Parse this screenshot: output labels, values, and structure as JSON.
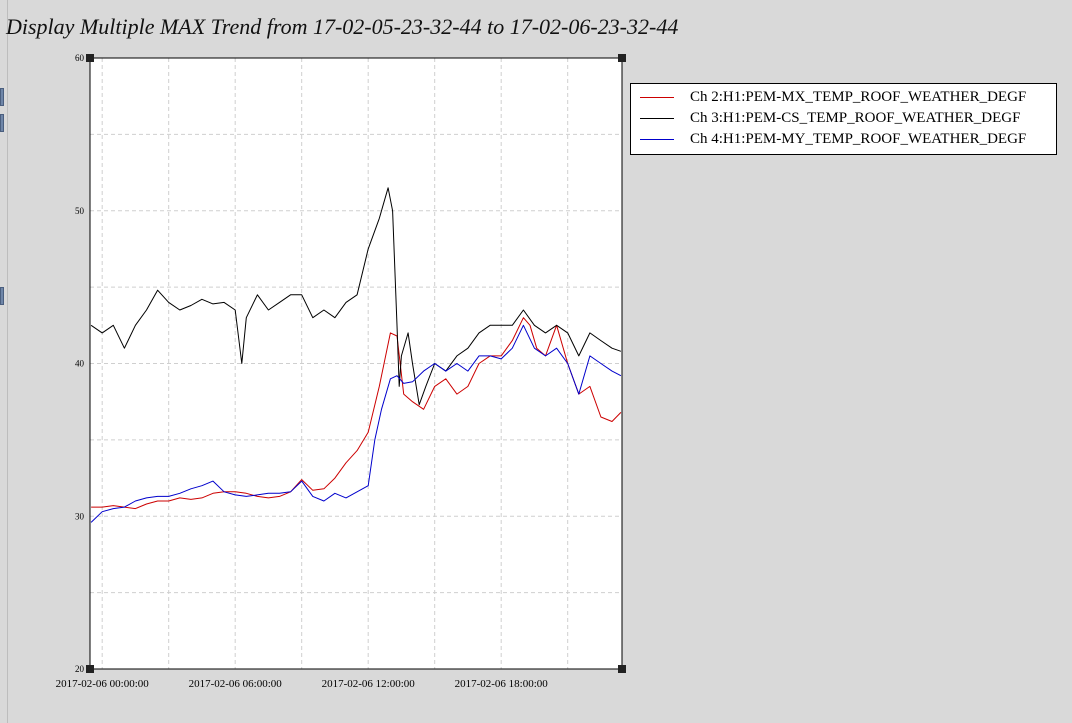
{
  "title": "Display Multiple MAX Trend from 17-02-05-23-32-44 to 17-02-06-23-32-44",
  "chart_data": {
    "type": "line",
    "xlabel": "",
    "ylabel": "",
    "xlim": [
      -0.55,
      23.45
    ],
    "ylim": [
      20,
      60
    ],
    "y_ticks": [
      20,
      30,
      40,
      50,
      60
    ],
    "x_ticks": [
      {
        "label": "2017-02-06 00:00:00",
        "value": 0
      },
      {
        "label": "2017-02-06 06:00:00",
        "value": 6
      },
      {
        "label": "2017-02-06 12:00:00",
        "value": 12
      },
      {
        "label": "2017-02-06 18:00:00",
        "value": 18
      }
    ],
    "grid": true,
    "legend_position": "right",
    "series": [
      {
        "name": "Ch 2:H1:PEM-MX_TEMP_ROOF_WEATHER_DEGF",
        "color": "#cc0000",
        "x": [
          -0.5,
          0.0,
          0.5,
          1.0,
          1.5,
          2.0,
          2.5,
          3.0,
          3.5,
          4.0,
          4.5,
          5.0,
          5.5,
          6.0,
          6.5,
          7.0,
          7.5,
          8.0,
          8.5,
          9.0,
          9.5,
          10.0,
          10.5,
          11.0,
          11.5,
          12.0,
          12.5,
          13.0,
          13.3,
          13.6,
          14.0,
          14.5,
          15.0,
          15.5,
          16.0,
          16.5,
          17.0,
          17.5,
          18.0,
          18.5,
          19.0,
          19.3,
          19.6,
          20.0,
          20.5,
          21.0,
          21.5,
          22.0,
          22.5,
          23.0,
          23.4
        ],
        "values": [
          30.6,
          30.6,
          30.7,
          30.6,
          30.5,
          30.8,
          31.0,
          31.0,
          31.2,
          31.1,
          31.2,
          31.5,
          31.6,
          31.6,
          31.5,
          31.3,
          31.2,
          31.3,
          31.6,
          32.4,
          31.7,
          31.8,
          32.5,
          33.5,
          34.3,
          35.5,
          38.5,
          42.0,
          41.8,
          38.0,
          37.5,
          37.0,
          38.5,
          39.0,
          38.0,
          38.5,
          40.0,
          40.5,
          40.5,
          41.5,
          43.0,
          42.5,
          41.0,
          40.5,
          42.5,
          40.0,
          38.0,
          38.5,
          36.5,
          36.2,
          36.8
        ]
      },
      {
        "name": "Ch 3:H1:PEM-CS_TEMP_ROOF_WEATHER_DEGF",
        "color": "#000000",
        "x": [
          -0.5,
          0.0,
          0.5,
          1.0,
          1.5,
          2.0,
          2.5,
          3.0,
          3.5,
          4.0,
          4.5,
          5.0,
          5.5,
          6.0,
          6.3,
          6.5,
          7.0,
          7.5,
          8.0,
          8.5,
          9.0,
          9.5,
          10.0,
          10.5,
          11.0,
          11.5,
          12.0,
          12.5,
          12.9,
          13.1,
          13.3,
          13.4,
          13.5,
          13.8,
          14.0,
          14.3,
          14.6,
          15.0,
          15.5,
          16.0,
          16.5,
          17.0,
          17.5,
          18.0,
          18.5,
          19.0,
          19.5,
          20.0,
          20.5,
          21.0,
          21.5,
          22.0,
          22.5,
          23.0,
          23.4
        ],
        "values": [
          42.5,
          42.0,
          42.5,
          41.0,
          42.5,
          43.5,
          44.8,
          44.0,
          43.5,
          43.8,
          44.2,
          43.9,
          44.0,
          43.5,
          40.0,
          43.0,
          44.5,
          43.5,
          44.0,
          44.5,
          44.5,
          43.0,
          43.5,
          43.0,
          44.0,
          44.5,
          47.5,
          49.5,
          51.5,
          50.0,
          42.5,
          38.5,
          40.5,
          42.0,
          40.0,
          37.3,
          38.5,
          40.0,
          39.5,
          40.5,
          41.0,
          42.0,
          42.5,
          42.5,
          42.5,
          43.5,
          42.5,
          42.0,
          42.5,
          42.0,
          40.5,
          42.0,
          41.5,
          41.0,
          40.8
        ]
      },
      {
        "name": "Ch 4:H1:PEM-MY_TEMP_ROOF_WEATHER_DEGF",
        "color": "#0000cc",
        "x": [
          -0.5,
          0.0,
          0.5,
          1.0,
          1.5,
          2.0,
          2.5,
          3.0,
          3.5,
          4.0,
          4.5,
          5.0,
          5.5,
          6.0,
          6.5,
          7.0,
          7.5,
          8.0,
          8.5,
          9.0,
          9.5,
          10.0,
          10.5,
          11.0,
          11.5,
          12.0,
          12.3,
          12.6,
          13.0,
          13.3,
          13.6,
          14.0,
          14.5,
          15.0,
          15.5,
          16.0,
          16.5,
          17.0,
          17.5,
          18.0,
          18.5,
          19.0,
          19.5,
          20.0,
          20.5,
          21.0,
          21.5,
          22.0,
          22.5,
          23.0,
          23.4
        ],
        "values": [
          29.6,
          30.3,
          30.5,
          30.6,
          31.0,
          31.2,
          31.3,
          31.3,
          31.5,
          31.8,
          32.0,
          32.3,
          31.6,
          31.4,
          31.3,
          31.4,
          31.5,
          31.5,
          31.6,
          32.3,
          31.3,
          31.0,
          31.5,
          31.2,
          31.6,
          32.0,
          35.0,
          37.0,
          39.0,
          39.2,
          38.7,
          38.8,
          39.5,
          40.0,
          39.5,
          40.0,
          39.5,
          40.5,
          40.5,
          40.3,
          41.0,
          42.5,
          41.0,
          40.5,
          41.0,
          40.0,
          38.0,
          40.5,
          40.0,
          39.5,
          39.2
        ]
      }
    ]
  }
}
